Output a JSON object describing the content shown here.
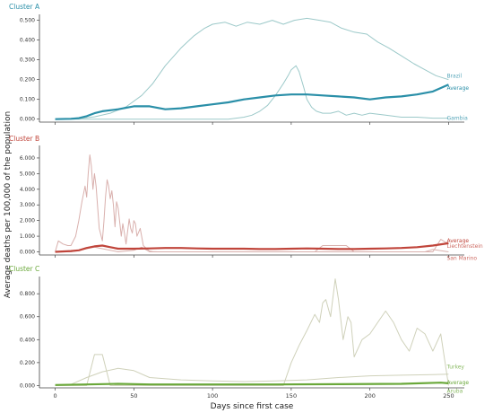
{
  "chart_data": {
    "type": "line",
    "ylabel": "Average deaths per 100,000 of the population",
    "xlabel": "Days since first case",
    "x_ticks": [
      0,
      50,
      100,
      150,
      200,
      250
    ],
    "xlim": [
      -10,
      260
    ],
    "panels": [
      {
        "title": "Cluster A",
        "color": "#2a8fa8",
        "light_color": "#9cc9c9",
        "ylim": [
          -0.015,
          0.53
        ],
        "y_ticks": [
          0.0,
          0.1,
          0.2,
          0.3,
          0.4,
          0.5
        ],
        "y_tick_labels": [
          "0.000",
          "0.100",
          "0.200",
          "0.300",
          "0.400",
          "0.500"
        ],
        "series": [
          {
            "name": "Brazil",
            "role": "country",
            "x": [
              0,
              15,
              25,
              35,
              45,
              55,
              62,
              70,
              80,
              88,
              95,
              100,
              108,
              115,
              122,
              130,
              138,
              145,
              152,
              160,
              168,
              175,
              182,
              190,
              198,
              205,
              212,
              220,
              228,
              235,
              242,
              250
            ],
            "y": [
              0,
              0.003,
              0.012,
              0.03,
              0.062,
              0.12,
              0.18,
              0.27,
              0.36,
              0.42,
              0.46,
              0.48,
              0.49,
              0.47,
              0.49,
              0.48,
              0.5,
              0.48,
              0.5,
              0.51,
              0.5,
              0.49,
              0.46,
              0.44,
              0.43,
              0.39,
              0.36,
              0.32,
              0.28,
              0.25,
              0.22,
              0.2
            ]
          },
          {
            "name": "Average",
            "role": "average",
            "x": [
              0,
              10,
              15,
              20,
              25,
              30,
              40,
              50,
              60,
              70,
              80,
              90,
              100,
              110,
              120,
              130,
              140,
              150,
              160,
              170,
              180,
              190,
              200,
              210,
              220,
              230,
              240,
              250
            ],
            "y": [
              0.0,
              0.002,
              0.005,
              0.015,
              0.03,
              0.04,
              0.05,
              0.065,
              0.065,
              0.05,
              0.055,
              0.065,
              0.075,
              0.085,
              0.1,
              0.11,
              0.12,
              0.125,
              0.125,
              0.12,
              0.115,
              0.11,
              0.1,
              0.11,
              0.115,
              0.125,
              0.14,
              0.175
            ]
          },
          {
            "name": "Gambia",
            "role": "country",
            "x": [
              0,
              95,
              110,
              120,
              125,
              130,
              135,
              140,
              145,
              148,
              150,
              153,
              155,
              158,
              160,
              163,
              166,
              170,
              175,
              180,
              185,
              190,
              195,
              200,
              210,
              220,
              230,
              240,
              250
            ],
            "y": [
              0,
              0,
              0,
              0.01,
              0.02,
              0.04,
              0.07,
              0.12,
              0.18,
              0.22,
              0.25,
              0.27,
              0.24,
              0.16,
              0.1,
              0.06,
              0.04,
              0.03,
              0.03,
              0.04,
              0.02,
              0.03,
              0.02,
              0.03,
              0.02,
              0.01,
              0.01,
              0.005,
              0.005
            ]
          }
        ]
      },
      {
        "title": "Cluster B",
        "color": "#c0453b",
        "light_color": "#d9b0ad",
        "ylim": [
          -0.2,
          6.8
        ],
        "y_ticks": [
          0,
          1,
          2,
          3,
          4,
          5,
          6
        ],
        "y_tick_labels": [
          "0.000",
          "1.000",
          "2.000",
          "3.000",
          "4.000",
          "5.000",
          "6.000"
        ],
        "series": [
          {
            "name": "Liechtenstein",
            "role": "country",
            "x": [
              0,
              2,
              5,
              8,
              10,
              13,
              15,
              17,
              19,
              20,
              21,
              22,
              23,
              24,
              25,
              26,
              27,
              28,
              30,
              31,
              32,
              33,
              34,
              35,
              36,
              37,
              38,
              39,
              40,
              42,
              43,
              44,
              45,
              47,
              48,
              49,
              50,
              51,
              52,
              54,
              56,
              58,
              60,
              62,
              65,
              150,
              160,
              175,
              180,
              200,
              240,
              245,
              250
            ],
            "y": [
              0,
              0.7,
              0.5,
              0.4,
              0.4,
              1.0,
              2.0,
              3.2,
              4.2,
              3.5,
              5.0,
              6.2,
              5.5,
              4.0,
              5.0,
              4.2,
              2.8,
              1.5,
              0.7,
              2.0,
              3.5,
              4.6,
              4.2,
              3.4,
              3.9,
              3.0,
              1.6,
              3.2,
              2.8,
              1.0,
              1.8,
              1.2,
              0.5,
              2.1,
              1.5,
              1.2,
              2.0,
              1.8,
              1.0,
              1.5,
              0.4,
              0.2,
              0.05,
              0.02,
              0.0,
              0.0,
              0.0,
              0.0,
              0.0,
              0.0,
              0.0,
              0.8,
              0.5
            ]
          },
          {
            "name": "Average",
            "role": "average",
            "x": [
              0,
              10,
              15,
              20,
              25,
              30,
              35,
              40,
              50,
              60,
              70,
              80,
              90,
              100,
              110,
              120,
              130,
              140,
              150,
              160,
              170,
              180,
              190,
              200,
              210,
              220,
              230,
              240,
              250
            ],
            "y": [
              0.0,
              0.05,
              0.1,
              0.25,
              0.35,
              0.4,
              0.3,
              0.2,
              0.2,
              0.22,
              0.25,
              0.25,
              0.22,
              0.2,
              0.2,
              0.2,
              0.18,
              0.18,
              0.2,
              0.22,
              0.2,
              0.18,
              0.18,
              0.2,
              0.22,
              0.25,
              0.3,
              0.4,
              0.55
            ]
          },
          {
            "name": "San Marino",
            "role": "country",
            "x": [
              0,
              5,
              10,
              20,
              25,
              30,
              40,
              50,
              55,
              60,
              100,
              165,
              170,
              185,
              190,
              200,
              210,
              235,
              240,
              250
            ],
            "y": [
              0,
              0.02,
              0.0,
              0.2,
              0.3,
              0.2,
              0.0,
              0.1,
              0.3,
              0.0,
              0.0,
              0.0,
              0.4,
              0.4,
              0.0,
              0.0,
              0.0,
              0.0,
              0.15,
              0.0
            ]
          }
        ]
      },
      {
        "title": "Cluster C",
        "color": "#6aa83a",
        "light_color": "#cfd1ba",
        "ylim": [
          -0.02,
          0.95
        ],
        "y_ticks": [
          0.0,
          0.2,
          0.4,
          0.6,
          0.8
        ],
        "y_tick_labels": [
          "0.000",
          "0.200",
          "0.400",
          "0.600",
          "0.800"
        ],
        "series": [
          {
            "name": "Turkey",
            "role": "country",
            "x": [
              0,
              10,
              20,
              30,
              40,
              50,
              60,
              80,
              100,
              120,
              140,
              160,
              180,
              200,
              220,
              240,
              250
            ],
            "y": [
              0,
              0.01,
              0.07,
              0.12,
              0.15,
              0.13,
              0.07,
              0.05,
              0.04,
              0.035,
              0.04,
              0.05,
              0.07,
              0.085,
              0.09,
              0.095,
              0.1
            ]
          },
          {
            "name": "Average",
            "role": "average",
            "x": [
              0,
              20,
              40,
              60,
              100,
              140,
              180,
              220,
              245,
              250
            ],
            "y": [
              0.005,
              0.01,
              0.015,
              0.01,
              0.01,
              0.01,
              0.012,
              0.015,
              0.025,
              0.02
            ]
          },
          {
            "name": "Aruba",
            "role": "country",
            "x": [
              0,
              20,
              25,
              30,
              35,
              40,
              55,
              70,
              145,
              150,
              155,
              160,
              165,
              168,
              170,
              172,
              175,
              178,
              180,
              183,
              186,
              188,
              190,
              195,
              200,
              205,
              210,
              215,
              220,
              225,
              230,
              235,
              240,
              245,
              250
            ],
            "y": [
              0,
              0.0,
              0.27,
              0.27,
              0.0,
              0.0,
              0.0,
              0.0,
              0.0,
              0.2,
              0.35,
              0.48,
              0.62,
              0.55,
              0.72,
              0.75,
              0.6,
              0.93,
              0.75,
              0.4,
              0.6,
              0.55,
              0.25,
              0.4,
              0.45,
              0.55,
              0.65,
              0.55,
              0.4,
              0.3,
              0.5,
              0.45,
              0.3,
              0.45,
              0.0
            ]
          }
        ]
      }
    ]
  }
}
